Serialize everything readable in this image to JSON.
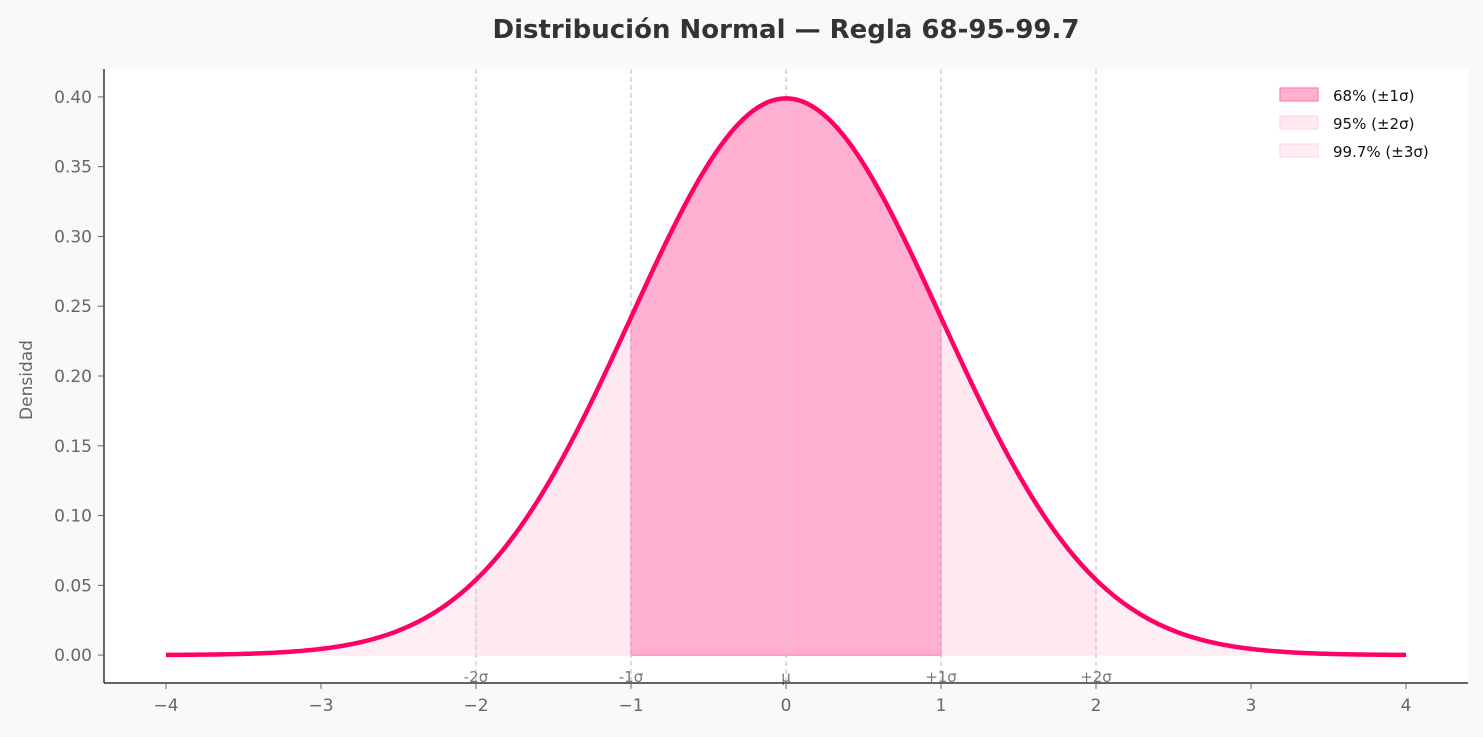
{
  "chart_data": {
    "type": "area",
    "title": "Distribución Normal — Regla 68-95-99.7",
    "xlabel": "",
    "ylabel": "Densidad",
    "xlim": [
      -4.4,
      4.4
    ],
    "ylim": [
      -0.02,
      0.42
    ],
    "xticks": [
      -4,
      -3,
      -2,
      -1,
      0,
      1,
      2,
      3,
      4
    ],
    "xtick_labels": [
      "−4",
      "−3",
      "−2",
      "−1",
      "0",
      "1",
      "2",
      "3",
      "4"
    ],
    "yticks": [
      0.0,
      0.05,
      0.1,
      0.15,
      0.2,
      0.25,
      0.3,
      0.35,
      0.4
    ],
    "ytick_labels": [
      "0.00",
      "0.05",
      "0.10",
      "0.15",
      "0.20",
      "0.25",
      "0.30",
      "0.35",
      "0.40"
    ],
    "grid": false,
    "curve": {
      "mean": 0,
      "sd": 1,
      "x_range": [
        -4,
        4
      ],
      "color": "#ff0066"
    },
    "regions": [
      {
        "name": "99.7% (±3σ)",
        "range": [
          -3,
          3
        ],
        "color": "#ffeef4"
      },
      {
        "name": "95% (±2σ)",
        "range": [
          -2,
          2
        ],
        "color": "#ffe8f0"
      },
      {
        "name": "68% (±1σ)",
        "range": [
          -1,
          1
        ],
        "color": "#ffb0d0",
        "edge": "#ff80b0"
      }
    ],
    "legend": {
      "placement": "top-right",
      "entries": [
        "68% (±1σ)",
        "95% (±2σ)",
        "99.7% (±3σ)"
      ]
    },
    "vlines": [
      {
        "x": -2,
        "label": "-2σ"
      },
      {
        "x": -1,
        "label": "-1σ"
      },
      {
        "x": 0,
        "label": "μ"
      },
      {
        "x": 1,
        "label": "+1σ"
      },
      {
        "x": 2,
        "label": "+2σ"
      }
    ]
  }
}
